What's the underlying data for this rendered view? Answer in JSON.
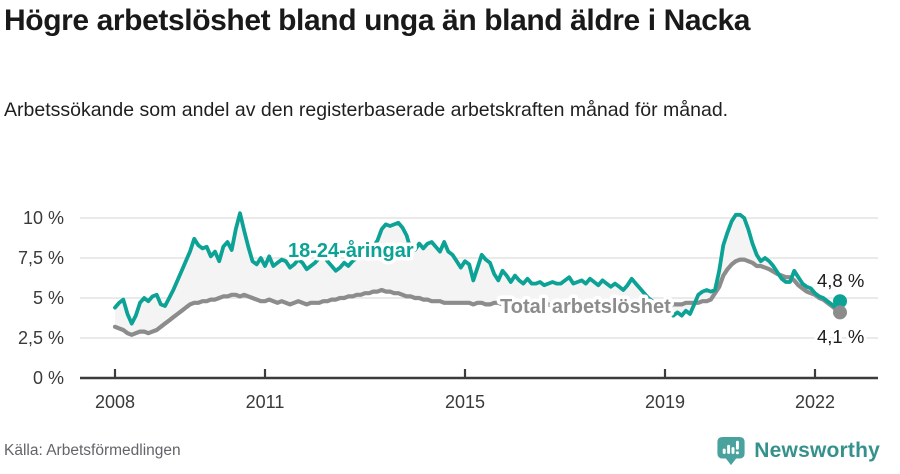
{
  "header": {
    "title": "Högre arbetslöshet bland unga än bland äldre i Nacka",
    "subtitle": "Arbetssökande som andel av den registerbaserade arbetskraften månad för månad."
  },
  "chart_data": {
    "type": "line",
    "title": "Högre arbetslöshet bland unga än bland äldre i Nacka",
    "subtitle": "Arbetssökande som andel av den registerbaserade arbetskraften månad för månad.",
    "xlabel": "",
    "ylabel": "",
    "x_start_year": 2008,
    "x_step_months": 1,
    "xlim": [
      2007.3,
      2023.2
    ],
    "ylim": [
      0,
      10.6
    ],
    "grid": true,
    "legend_position": "inline-labels",
    "colors": {
      "young": "#0ca295",
      "total": "#8c8c8c",
      "fill_between": "#f4f4f4",
      "gridline": "#dedede",
      "axis": "#3c3c3c",
      "tick_text": "#3a3a3a",
      "end_label_text": "#1c1c1c"
    },
    "y_ticks": [
      {
        "v": 0,
        "label": "0 %"
      },
      {
        "v": 2.5,
        "label": "2,5 %"
      },
      {
        "v": 5,
        "label": "5 %"
      },
      {
        "v": 7.5,
        "label": "7,5 %"
      },
      {
        "v": 10,
        "label": "10 %"
      }
    ],
    "x_ticks": [
      {
        "v": 2008,
        "label": "2008"
      },
      {
        "v": 2011,
        "label": "2011"
      },
      {
        "v": 2015,
        "label": "2015"
      },
      {
        "v": 2019,
        "label": "2019"
      },
      {
        "v": 2022,
        "label": "2022"
      }
    ],
    "series": [
      {
        "name": "18-24-åringar",
        "end_label": "4,8 %",
        "values": [
          4.4,
          4.7,
          4.9,
          4.0,
          3.4,
          3.9,
          4.7,
          5.0,
          4.8,
          5.1,
          5.2,
          4.6,
          4.5,
          5.0,
          5.5,
          6.1,
          6.7,
          7.3,
          7.9,
          8.7,
          8.3,
          8.1,
          8.2,
          7.6,
          7.9,
          7.3,
          8.2,
          8.5,
          8.0,
          9.3,
          10.3,
          9.2,
          8.2,
          7.3,
          7.1,
          7.5,
          7.0,
          7.6,
          7.0,
          7.2,
          7.4,
          7.3,
          6.9,
          7.1,
          7.4,
          7.2,
          6.8,
          7.0,
          7.2,
          7.5,
          7.7,
          7.3,
          7.0,
          6.7,
          6.9,
          7.2,
          7.0,
          7.3,
          7.5,
          7.8,
          7.6,
          7.9,
          8.2,
          8.6,
          9.3,
          9.6,
          9.5,
          9.6,
          9.7,
          9.4,
          8.9,
          8.0,
          8.0,
          8.4,
          8.1,
          8.4,
          8.5,
          8.2,
          7.9,
          8.5,
          7.9,
          7.7,
          7.3,
          6.9,
          7.3,
          7.1,
          6.1,
          6.9,
          7.7,
          7.4,
          7.2,
          6.5,
          6.1,
          6.7,
          6.4,
          6.0,
          6.4,
          6.1,
          5.9,
          6.2,
          5.9,
          5.9,
          6.0,
          5.8,
          5.9,
          6.0,
          5.9,
          5.9,
          6.1,
          6.3,
          5.9,
          6.0,
          6.1,
          5.9,
          6.2,
          6.0,
          5.8,
          6.1,
          5.9,
          5.7,
          5.9,
          5.7,
          5.5,
          5.8,
          6.2,
          5.9,
          5.6,
          5.3,
          5.0,
          4.8,
          4.5,
          4.4,
          4.6,
          4.4,
          3.9,
          4.1,
          3.9,
          4.2,
          4.0,
          4.6,
          5.2,
          5.4,
          5.5,
          5.4,
          5.5,
          6.7,
          8.3,
          9.1,
          9.8,
          10.2,
          10.2,
          10.0,
          9.3,
          8.4,
          7.7,
          7.3,
          7.5,
          7.3,
          7.0,
          6.6,
          6.2,
          6.0,
          6.0,
          6.7,
          6.3,
          5.9,
          5.7,
          5.6,
          5.3,
          5.1,
          5.0,
          4.8,
          4.6,
          4.4,
          4.8
        ]
      },
      {
        "name": "Total arbetslöshet",
        "end_label": "4,1 %",
        "values": [
          3.2,
          3.1,
          3.0,
          2.8,
          2.7,
          2.8,
          2.9,
          2.9,
          2.8,
          2.9,
          3.0,
          3.2,
          3.4,
          3.6,
          3.8,
          4.0,
          4.2,
          4.4,
          4.6,
          4.7,
          4.7,
          4.8,
          4.8,
          4.9,
          4.9,
          5.0,
          5.1,
          5.1,
          5.2,
          5.2,
          5.1,
          5.2,
          5.1,
          5.0,
          4.9,
          4.8,
          4.8,
          4.9,
          4.8,
          4.7,
          4.8,
          4.7,
          4.6,
          4.7,
          4.8,
          4.7,
          4.6,
          4.7,
          4.7,
          4.7,
          4.8,
          4.8,
          4.9,
          4.9,
          5.0,
          5.0,
          5.1,
          5.1,
          5.2,
          5.2,
          5.3,
          5.3,
          5.4,
          5.4,
          5.5,
          5.4,
          5.4,
          5.3,
          5.3,
          5.2,
          5.1,
          5.1,
          5.0,
          5.0,
          4.9,
          4.9,
          4.8,
          4.8,
          4.8,
          4.7,
          4.7,
          4.7,
          4.7,
          4.7,
          4.7,
          4.7,
          4.6,
          4.7,
          4.7,
          4.6,
          4.6,
          4.7,
          4.7,
          4.6,
          4.6,
          4.6,
          4.6,
          4.7,
          4.7,
          4.6,
          4.6,
          4.6,
          4.5,
          4.6,
          4.6,
          4.5,
          4.5,
          4.6,
          4.6,
          4.6,
          4.7,
          4.6,
          4.6,
          4.5,
          4.5,
          4.6,
          4.6,
          4.5,
          4.5,
          4.5,
          4.5,
          4.5,
          4.6,
          4.5,
          4.5,
          4.4,
          4.4,
          4.5,
          4.5,
          4.4,
          4.4,
          4.5,
          4.5,
          4.5,
          4.6,
          4.6,
          4.6,
          4.7,
          4.7,
          4.7,
          4.7,
          4.8,
          4.8,
          4.9,
          5.3,
          5.7,
          6.4,
          6.8,
          7.1,
          7.3,
          7.4,
          7.4,
          7.3,
          7.2,
          7.0,
          7.0,
          6.9,
          6.8,
          6.65,
          6.5,
          6.4,
          6.3,
          6.3,
          6.1,
          5.8,
          5.6,
          5.4,
          5.3,
          5.2,
          5.0,
          4.9,
          4.7,
          4.5,
          4.3,
          4.1
        ]
      }
    ]
  },
  "footer": {
    "source": "Källa: Arbetsförmedlingen",
    "brand": "Newsworthy",
    "brand_color": "#35918c"
  }
}
